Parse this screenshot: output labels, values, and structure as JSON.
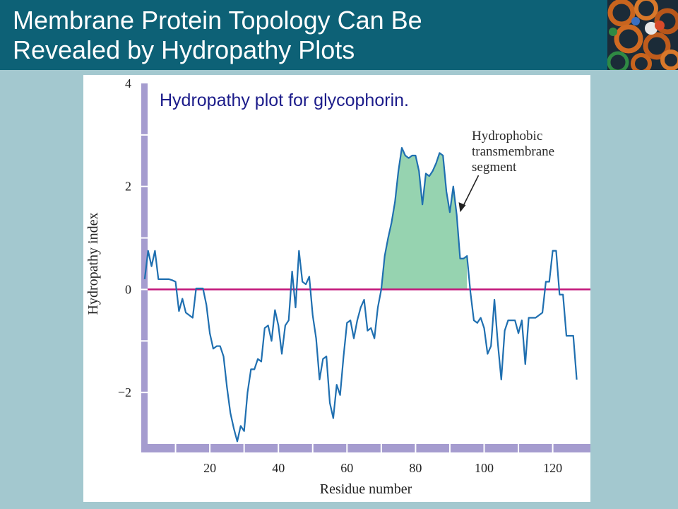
{
  "slide": {
    "title_line1": "Membrane Protein Topology Can Be",
    "title_line2": "Revealed by Hydropathy Plots"
  },
  "chart_data": {
    "type": "line",
    "subtitle": "Hydropathy plot for glycophorin.",
    "xlabel": "Residue number",
    "ylabel": "Hydropathy index",
    "xlim": [
      0,
      131
    ],
    "ylim": [
      -3.0,
      4.0
    ],
    "x_ticks": [
      20,
      40,
      60,
      80,
      100,
      120
    ],
    "y_ticks": [
      4,
      2,
      0,
      -2
    ],
    "y_tick_labels": [
      "4",
      "2",
      "0",
      "−2"
    ],
    "zero_line": 0,
    "annotation": {
      "lines": [
        "Hydrophobic",
        "transmembrane",
        "segment"
      ],
      "points_to": [
        93,
        1.5
      ]
    },
    "highlight_range": [
      70,
      95
    ],
    "colors": {
      "line": "#1f6fb0",
      "zero_line": "#c2157a",
      "fill": "#96d3b0",
      "frame": "#a59ccf",
      "title_bar": "#0d6176",
      "background": "#a3c8cf"
    },
    "series": [
      {
        "x": [
          1,
          2,
          3,
          4,
          5,
          6,
          7,
          8,
          9,
          10,
          11,
          12,
          13,
          14,
          15,
          16,
          17,
          18,
          19,
          20,
          21,
          22,
          23,
          24,
          25,
          26,
          27,
          28,
          29,
          30,
          31,
          32,
          33,
          34,
          35,
          36,
          37,
          38,
          39,
          40,
          41,
          42,
          43,
          44,
          45,
          46,
          47,
          48,
          49,
          50,
          51,
          52,
          53,
          54,
          55,
          56,
          57,
          58,
          59,
          60,
          61,
          62,
          63,
          64,
          65,
          66,
          67,
          68,
          69,
          70,
          71,
          72,
          73,
          74,
          75,
          76,
          77,
          78,
          79,
          80,
          81,
          82,
          83,
          84,
          85,
          86,
          87,
          88,
          89,
          90,
          91,
          92,
          93,
          94,
          95,
          96,
          97,
          98,
          99,
          100,
          101,
          102,
          103,
          104,
          105,
          106,
          107,
          108,
          109,
          110,
          111,
          112,
          113,
          114,
          115,
          116,
          117,
          118,
          119,
          120,
          121,
          122,
          123,
          124,
          125,
          126,
          127
        ],
        "y": [
          0.2,
          0.75,
          0.45,
          0.75,
          0.2,
          0.2,
          0.2,
          0.2,
          0.18,
          0.15,
          -0.42,
          -0.18,
          -0.45,
          -0.5,
          -0.55,
          0.02,
          0.02,
          0.02,
          -0.3,
          -0.85,
          -1.15,
          -1.1,
          -1.1,
          -1.3,
          -1.9,
          -2.4,
          -2.7,
          -2.95,
          -2.65,
          -2.75,
          -2.0,
          -1.55,
          -1.55,
          -1.35,
          -1.4,
          -0.75,
          -0.7,
          -1.0,
          -0.4,
          -0.7,
          -1.25,
          -0.7,
          -0.6,
          0.35,
          -0.35,
          0.75,
          0.15,
          0.1,
          0.25,
          -0.5,
          -0.95,
          -1.75,
          -1.35,
          -1.3,
          -2.2,
          -2.5,
          -1.85,
          -2.05,
          -1.3,
          -0.65,
          -0.6,
          -0.95,
          -0.6,
          -0.35,
          -0.2,
          -0.8,
          -0.75,
          -0.95,
          -0.35,
          0.0,
          0.65,
          1.0,
          1.3,
          1.7,
          2.3,
          2.75,
          2.6,
          2.55,
          2.6,
          2.6,
          2.3,
          1.65,
          2.25,
          2.2,
          2.3,
          2.45,
          2.65,
          2.6,
          1.9,
          1.5,
          2.0,
          1.45,
          0.6,
          0.6,
          0.65,
          -0.05,
          -0.6,
          -0.65,
          -0.55,
          -0.75,
          -1.25,
          -1.1,
          -0.2,
          -1.05,
          -1.75,
          -0.8,
          -0.6,
          -0.6,
          -0.6,
          -0.85,
          -0.6,
          -1.45,
          -0.55,
          -0.55,
          -0.55,
          -0.5,
          -0.45,
          0.15,
          0.15,
          0.75,
          0.75,
          -0.1,
          -0.1,
          -0.9,
          -0.9,
          -0.9,
          -1.75
        ]
      }
    ]
  }
}
